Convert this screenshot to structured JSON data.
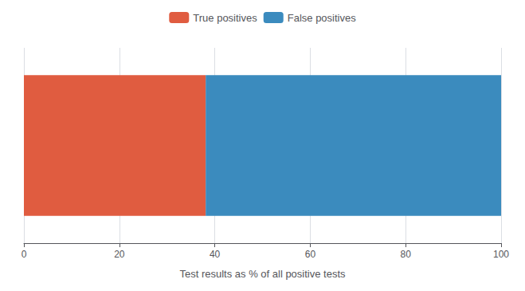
{
  "chart_data": {
    "type": "bar",
    "orientation": "horizontal",
    "stacked": true,
    "categories": [
      null
    ],
    "series": [
      {
        "name": "True positives",
        "color": "#E05C40",
        "values": [
          38.095238
        ]
      },
      {
        "name": "False positives",
        "color": "#3B8BBE",
        "values": [
          61.904762
        ]
      }
    ],
    "xlabel": "Test results as % of all positive tests",
    "xlim": [
      0,
      100
    ],
    "xticks": [
      0,
      20,
      40,
      60,
      80,
      100
    ],
    "grid": true,
    "legend": "top",
    "tick_labels": "x"
  }
}
